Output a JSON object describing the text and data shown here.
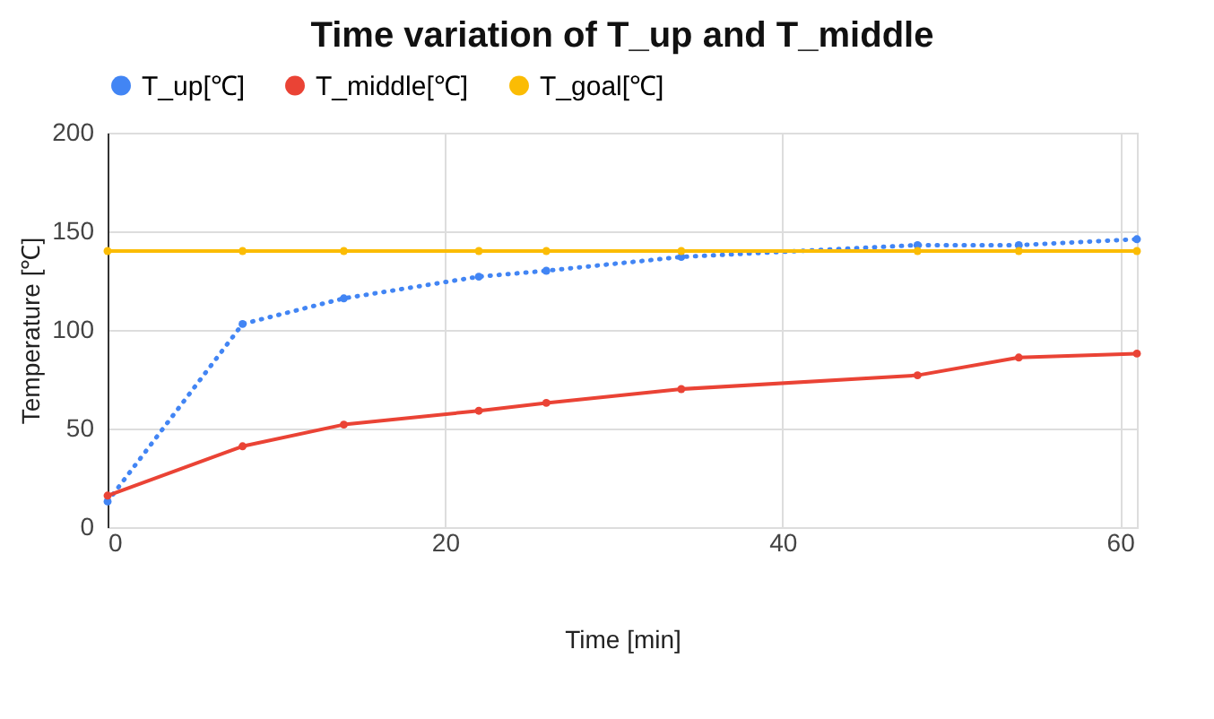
{
  "chart_data": {
    "type": "line",
    "title": "Time variation of T_up and T_middle",
    "xlabel": "Time [min]",
    "ylabel": "Temperature [℃]",
    "x": [
      0,
      8,
      14,
      22,
      26,
      34,
      48,
      54,
      61
    ],
    "series": [
      {
        "name": "T_up[℃]",
        "color": "#4285f4",
        "line_style": "dotted",
        "values": [
          13,
          103,
          116,
          127,
          130,
          137,
          143,
          143,
          146
        ]
      },
      {
        "name": "T_middle[℃]",
        "color": "#ea4335",
        "line_style": "solid",
        "values": [
          16,
          41,
          52,
          59,
          63,
          70,
          77,
          86,
          88
        ]
      },
      {
        "name": "T_goal[℃]",
        "color": "#fbbc04",
        "line_style": "solid",
        "values": [
          140,
          140,
          140,
          140,
          140,
          140,
          140,
          140,
          140
        ]
      }
    ],
    "xlim": [
      0,
      61
    ],
    "xticks": [
      0,
      20,
      40,
      60
    ],
    "ylim": [
      0,
      200
    ],
    "yticks": [
      0,
      50,
      100,
      150,
      200
    ],
    "grid": true,
    "legend": "top",
    "marker": "circle"
  }
}
